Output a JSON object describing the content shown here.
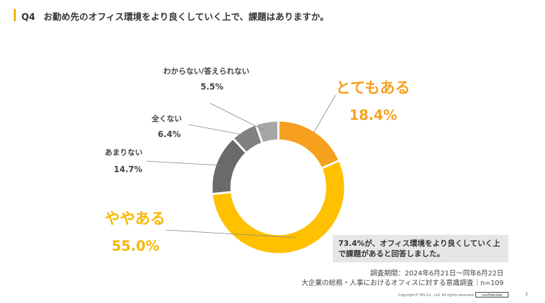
{
  "header": {
    "question_number": "Q4",
    "question_text": "お勤め先のオフィス環境をより良くしていく上で、課題はありますか。"
  },
  "chart_data": {
    "type": "pie",
    "variant": "donut",
    "title": "お勤め先のオフィス環境をより良くしていく上で、課題はありますか。",
    "categories": [
      "とてもある",
      "ややある",
      "あまりない",
      "全くない",
      "わからない/答えられない"
    ],
    "values": [
      18.4,
      55.0,
      14.7,
      6.4,
      5.5
    ],
    "value_labels": [
      "18.4%",
      "55.0%",
      "14.7%",
      "6.4%",
      "5.5%"
    ],
    "colors": [
      "#F7A01E",
      "#FFC000",
      "#6A6A6A",
      "#808080",
      "#A6A6A6"
    ]
  },
  "callout": {
    "line1": "73.4%が、オフィス環境をより良くしていく上",
    "line2": "で課題があると回答しました。"
  },
  "survey": {
    "period": "調査期間：2024年6月21日〜同年6月22日",
    "target": "大企業の総務・人事におけるオフィスに対する意識調査｜n=109"
  },
  "footer": {
    "copyright": "Copyright© WS Co., Ltd. All rights reserved.",
    "confidential": "confidential",
    "page_number": "7"
  }
}
